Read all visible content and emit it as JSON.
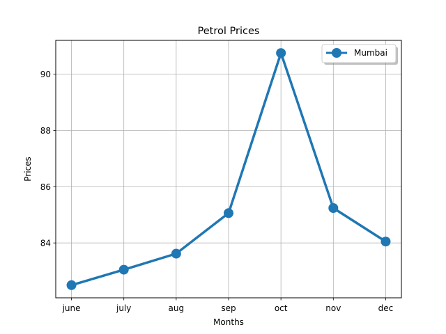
{
  "chart_data": {
    "type": "line",
    "title": "Petrol Prices",
    "xlabel": "Months",
    "ylabel": "Prices",
    "categories": [
      "june",
      "july",
      "aug",
      "sep",
      "oct",
      "nov",
      "dec"
    ],
    "series": [
      {
        "name": "Mumbai",
        "values": [
          82.5,
          83.05,
          83.62,
          85.06,
          90.75,
          85.24,
          84.05
        ],
        "color": "#1f77b4"
      }
    ],
    "ylim": [
      82.05,
      91.2
    ],
    "yticks": [
      84,
      86,
      88,
      90
    ],
    "grid": true,
    "legend_position": "top-right"
  }
}
